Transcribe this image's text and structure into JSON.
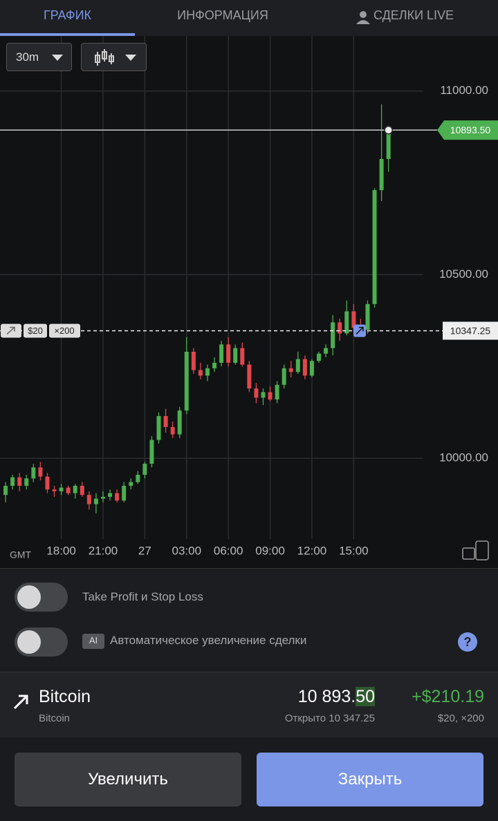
{
  "tabs": [
    "ГРАФИК",
    "ИНФОРМАЦИЯ",
    "СДЕЛКИ LIVE"
  ],
  "toolbar": {
    "timeframe": "30m"
  },
  "chart_data": {
    "type": "candlestick",
    "open": [
      9900,
      9925,
      9948,
      9925,
      9945,
      9975,
      9950,
      9915,
      9910,
      9920,
      9905,
      9925,
      9900,
      9875,
      9890,
      9895,
      9905,
      9885,
      9925,
      9935,
      9955,
      9985,
      10050,
      10115,
      10085,
      10065,
      10130,
      10290,
      10240,
      10225,
      10245,
      10260,
      10310,
      10260,
      10300,
      10255,
      10190,
      10165,
      10180,
      10160,
      10200,
      10245,
      10235,
      10270,
      10225,
      10265,
      10285,
      10300,
      10370,
      10340,
      10400,
      10355,
      10350,
      10420,
      10730,
      10815
    ],
    "high": [
      9935,
      9955,
      9960,
      9955,
      9985,
      9990,
      9960,
      9925,
      9930,
      9925,
      9930,
      9935,
      9910,
      9905,
      9910,
      9915,
      9915,
      9935,
      9945,
      9965,
      9990,
      10060,
      10125,
      10135,
      10100,
      10140,
      10330,
      10300,
      10260,
      10255,
      10275,
      10320,
      10330,
      10310,
      10315,
      10265,
      10205,
      10190,
      10195,
      10210,
      10255,
      10265,
      10290,
      10280,
      10270,
      10290,
      10310,
      10390,
      10380,
      10430,
      10420,
      10380,
      10430,
      10735,
      10964,
      10905
    ],
    "low": [
      9880,
      9915,
      9910,
      9915,
      9935,
      9940,
      9905,
      9895,
      9900,
      9900,
      9890,
      9895,
      9860,
      9850,
      9880,
      9885,
      9880,
      9880,
      9915,
      9930,
      9945,
      9975,
      10040,
      10070,
      10055,
      10055,
      10120,
      10230,
      10215,
      10210,
      10235,
      10250,
      10250,
      10255,
      10250,
      10180,
      10150,
      10145,
      10155,
      10150,
      10190,
      10220,
      10230,
      10215,
      10220,
      10260,
      10275,
      10280,
      10320,
      10335,
      10345,
      10340,
      10340,
      10410,
      10700,
      10780
    ],
    "close": [
      9925,
      9948,
      9925,
      9945,
      9975,
      9950,
      9915,
      9910,
      9920,
      9905,
      9925,
      9900,
      9875,
      9890,
      9895,
      9905,
      9885,
      9925,
      9935,
      9955,
      9985,
      10050,
      10115,
      10085,
      10065,
      10130,
      10290,
      10240,
      10225,
      10245,
      10260,
      10310,
      10260,
      10300,
      10255,
      10190,
      10165,
      10180,
      10160,
      10200,
      10245,
      10235,
      10270,
      10225,
      10265,
      10285,
      10300,
      10370,
      10340,
      10400,
      10355,
      10350,
      10420,
      10730,
      10815,
      10893.5
    ],
    "up_color": "#4caf50",
    "down_color": "#e0474c",
    "ylim": [
      9780,
      11150
    ],
    "yticks": [
      {
        "value": 10000,
        "label": "10000.00"
      },
      {
        "value": 10500,
        "label": "10500.00"
      },
      {
        "value": 11000,
        "label": "11000.00"
      }
    ],
    "xlim": [
      -0.8,
      60
    ],
    "xticks": [
      {
        "value": 8,
        "label": "18:00"
      },
      {
        "value": 14,
        "label": "21:00"
      },
      {
        "value": 20,
        "label": "27"
      },
      {
        "value": 26,
        "label": "03:00"
      },
      {
        "value": 32,
        "label": "06:00"
      },
      {
        "value": 38,
        "label": "09:00"
      },
      {
        "value": 44,
        "label": "12:00"
      },
      {
        "value": 50,
        "label": "15:00"
      }
    ],
    "timezone": "GMT",
    "grid": true,
    "current_price": {
      "value": 10893.5,
      "label": "10893.50"
    },
    "entry_price": {
      "value": 10347.25,
      "label": "10347.25"
    },
    "position": {
      "amount": "$20",
      "multiplier": "×200"
    }
  },
  "settings": {
    "take_profit": "Take Profit и Stop Loss",
    "ai_badge": "AI",
    "auto_increase": "Автоматическое увеличение сделки"
  },
  "asset": {
    "name": "Bitcoin",
    "subtitle": "Bitcoin",
    "price_main": "10 893.",
    "price_decimals": "50",
    "opened": "Открыто 10 347.25",
    "profit": "+$210.19",
    "details": "$20, ×200"
  },
  "buttons": {
    "increase": "Увеличить",
    "close": "Закрыть"
  }
}
